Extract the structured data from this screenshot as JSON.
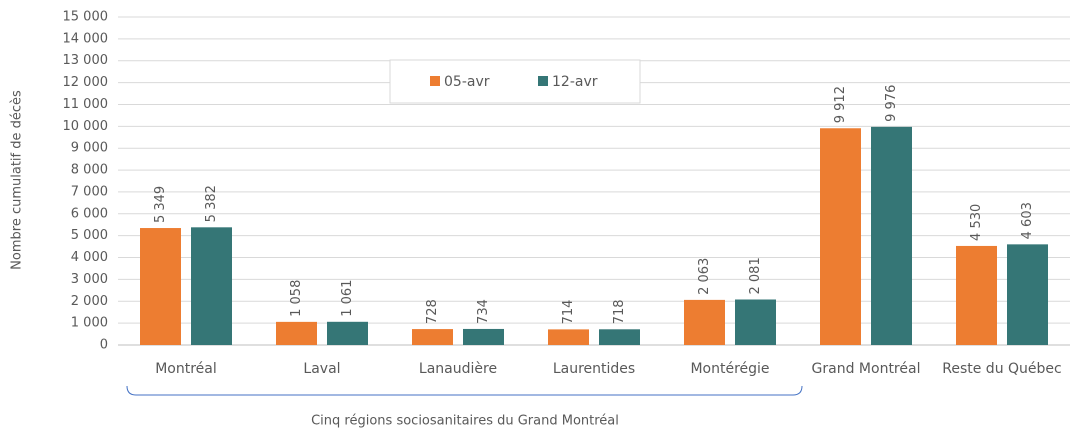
{
  "chart_data": {
    "type": "bar",
    "y_label": "Nombre cumulatif de décès",
    "categories": [
      "Montréal",
      "Laval",
      "Lanaudière",
      "Laurentides",
      "Montérégie",
      "Grand Montréal",
      "Reste du Québec"
    ],
    "series": [
      {
        "name": "05-avr",
        "color": "#ed7d31",
        "values": [
          5349,
          1058,
          728,
          714,
          2063,
          9912,
          4530
        ],
        "value_labels": [
          "5 349",
          "1 058",
          "728",
          "714",
          "2 063",
          "9 912",
          "4 530"
        ]
      },
      {
        "name": "12-avr",
        "color": "#357676",
        "values": [
          5382,
          1061,
          734,
          718,
          2081,
          9976,
          4603
        ],
        "value_labels": [
          "5 382",
          "1 061",
          "734",
          "718",
          "2 081",
          "9 976",
          "4 603"
        ]
      }
    ],
    "ylim": [
      0,
      15000
    ],
    "yticks": [
      0,
      {
        "value": 1000,
        "label": "1 000"
      },
      {
        "value": 2000,
        "label": "2 000"
      },
      {
        "value": 3000,
        "label": "3 000"
      },
      {
        "value": 4000,
        "label": "4 000"
      },
      {
        "value": 5000,
        "label": "5 000"
      },
      {
        "value": 6000,
        "label": "6 000"
      },
      {
        "value": 7000,
        "label": "7 000"
      },
      {
        "value": 8000,
        "label": "8 000"
      },
      {
        "value": 9000,
        "label": "9 000"
      },
      {
        "value": 10000,
        "label": "10 000"
      },
      {
        "value": 11000,
        "label": "11 000"
      },
      {
        "value": 12000,
        "label": "12 000"
      },
      {
        "value": 13000,
        "label": "13 000"
      },
      {
        "value": 14000,
        "label": "14 000"
      },
      {
        "value": 15000,
        "label": "15 000"
      }
    ],
    "grid": true,
    "legend": "top",
    "annotation": "Cinq régions sociosanitaires du Grand Montréal"
  }
}
